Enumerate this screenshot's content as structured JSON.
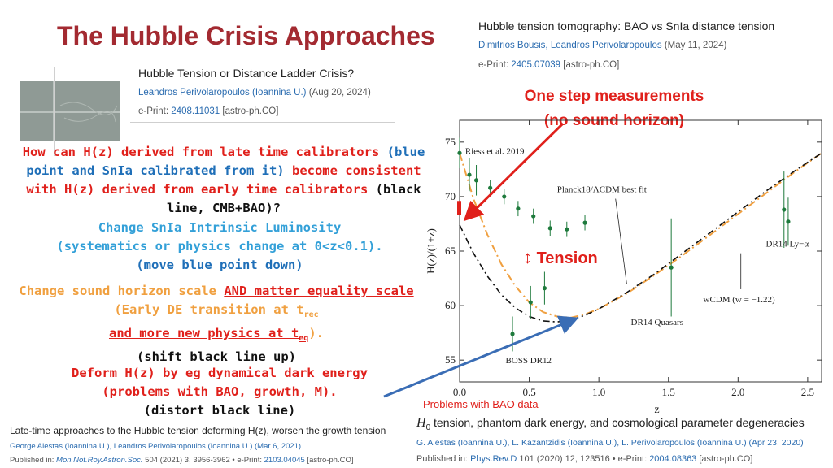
{
  "slide_title": "The Hubble Crisis Approaches",
  "ref_top_right": {
    "title": "Hubble tension tomography: BAO vs SnIa distance tension",
    "authors": "Dimitrios Bousis, Leandros Perivolaropoulos",
    "date": "(May 11, 2024)",
    "eprint_label": "e-Print:",
    "eprint_id": "2405.07039",
    "eprint_cat": "[astro-ph.CO]"
  },
  "ref_top_left": {
    "title": "Hubble Tension or Distance Ladder Crisis?",
    "author": "Leandros Perivolaropoulos",
    "affil": "(Ioannina U.)",
    "date": "(Aug 20, 2024)",
    "eprint_label": "e-Print:",
    "eprint_id": "2408.11031",
    "eprint_cat": "[astro-ph.CO]"
  },
  "ref_bottom_left": {
    "title": "Late-time approaches to the Hubble tension deforming H(z), worsen the growth tension",
    "authors": "George Alestas (Ioannina U.), Leandros Perivolaropoulos (Ioannina U.) (Mar 6, 2021)",
    "pub_label": "Published in:",
    "journal": "Mon.Not.Roy.Astron.Soc.",
    "journal_rest": "504 (2021) 3, 3956-3962 • e-Print:",
    "eprint_id": "2103.04045",
    "eprint_cat": "[astro-ph.CO]"
  },
  "ref_bottom_right": {
    "title_h0": "H",
    "title_sub": "0",
    "title_rest": " tension, phantom dark energy, and cosmological parameter degeneracies",
    "authors": "G. Alestas (Ioannina U.), L. Kazantzidis (Ioannina U.), L. Perivolaropoulos (Ioannina U.) (Apr 23, 2020)",
    "pub_label": "Published in:",
    "journal": "Phys.Rev.D",
    "journal_rest": "101 (2020) 12, 123516 • e-Print:",
    "eprint_id": "2004.08363",
    "eprint_cat": "[astro-ph.CO]"
  },
  "question": {
    "l1a": "How can H(z) derived from late time calibrators ",
    "l1b": "(blue",
    "l2a": "point and SnIa calibrated from it) ",
    "l2b": "become consistent",
    "l3a": "with H(z) derived from early time calibrators ",
    "l3b": "(black",
    "l4": "line, CMB+BAO)?"
  },
  "option1": {
    "l1": "Change SnIa Intrinsic Luminosity",
    "l2": "(systematics or physics change at 0<z<0.1).",
    "l3": "(move blue point down)"
  },
  "option2": {
    "l1a": "Change sound horizon scale ",
    "l1b": "AND matter equality scale",
    "l2a": "(Early DE transition at t",
    "l2sub": "rec",
    "l3a": "and more new physics at t",
    "l3sub": "eq",
    "l3b": ").",
    "l4": "(shift black line up)"
  },
  "option3": {
    "l1": "Deform H(z) by eg dynamical dark energy",
    "l2": "(problems with BAO, growth, M).",
    "l3": "(distort black line)"
  },
  "one_step": {
    "l1": "One step measurements",
    "l2": "(no sound horizon)"
  },
  "tension_label": "Tension",
  "bao_note": "Problems with BAO data",
  "colors": {
    "title": "#a32a31",
    "red": "#e0201b",
    "blue": "#1f6fb8",
    "cyan": "#33a0d8",
    "orange": "#f0a040",
    "data_green": "#1e7a3c",
    "lcdm_line": "#111111",
    "wcdm_line": "#f0a040"
  },
  "chart_data": {
    "type": "scatter",
    "xlabel": "z",
    "ylabel": "H(z)/(1+z)",
    "xlim": [
      0,
      2.6
    ],
    "ylim": [
      53,
      77
    ],
    "xticks": [
      "0.0",
      "0.5",
      "1.0",
      "1.5",
      "2.0",
      "2.5"
    ],
    "yticks": [
      "55",
      "60",
      "65",
      "70",
      "75"
    ],
    "xtick_values": [
      0,
      0.5,
      1.0,
      1.5,
      2.0,
      2.5
    ],
    "ytick_values": [
      55,
      60,
      65,
      70,
      75
    ],
    "points": [
      {
        "x": 0.0,
        "y": 74.0,
        "err": 1.4
      },
      {
        "x": 0.07,
        "y": 72.0,
        "err": 1.5
      },
      {
        "x": 0.12,
        "y": 71.5,
        "err": 1.4
      },
      {
        "x": 0.22,
        "y": 70.8,
        "err": 0.7
      },
      {
        "x": 0.32,
        "y": 70.0,
        "err": 0.7
      },
      {
        "x": 0.42,
        "y": 68.9,
        "err": 0.7
      },
      {
        "x": 0.53,
        "y": 68.2,
        "err": 0.7
      },
      {
        "x": 0.65,
        "y": 67.1,
        "err": 0.7
      },
      {
        "x": 0.77,
        "y": 67.0,
        "err": 0.7
      },
      {
        "x": 0.9,
        "y": 67.6,
        "err": 0.7
      },
      {
        "x": 0.38,
        "y": 57.4,
        "err": 1.6
      },
      {
        "x": 0.51,
        "y": 60.3,
        "err": 1.5
      },
      {
        "x": 0.61,
        "y": 61.6,
        "err": 1.5
      },
      {
        "x": 1.52,
        "y": 63.5,
        "err": 4.5
      },
      {
        "x": 2.33,
        "y": 68.8,
        "err": 3.5
      },
      {
        "x": 2.36,
        "y": 67.7,
        "err": 2.2
      }
    ],
    "lcdm_curve": {
      "x": [
        0,
        0.1,
        0.2,
        0.3,
        0.4,
        0.5,
        0.6,
        0.7,
        0.8,
        0.9,
        1.0,
        1.2,
        1.4,
        1.6,
        1.8,
        2.0,
        2.2,
        2.4,
        2.6
      ],
      "y": [
        67.4,
        64.8,
        62.7,
        61.0,
        59.8,
        59.0,
        58.6,
        58.5,
        58.7,
        59.1,
        59.7,
        61.2,
        62.9,
        64.8,
        66.7,
        68.6,
        70.5,
        72.3,
        74.0
      ]
    },
    "wcdm_curve": {
      "x": [
        0,
        0.1,
        0.2,
        0.3,
        0.4,
        0.5,
        0.6,
        0.7,
        0.8,
        0.9,
        1.0,
        1.2,
        1.4,
        1.6,
        1.8,
        2.0,
        2.2,
        2.4,
        2.6
      ],
      "y": [
        74.0,
        69.8,
        66.5,
        63.8,
        61.8,
        60.3,
        59.4,
        59.0,
        58.9,
        59.2,
        59.7,
        61.1,
        62.8,
        64.6,
        66.5,
        68.4,
        70.3,
        72.2,
        74.0
      ]
    },
    "annotations": {
      "riess": "Riess et al. 2019",
      "planck": "Planck18/ΛCDM best fit",
      "dr14lya": "DR14 Ly−α",
      "wcdm": "wCDM (w = −1.22)",
      "dr14q": "DR14 Quasars",
      "bossdr12": "BOSS DR12"
    }
  }
}
